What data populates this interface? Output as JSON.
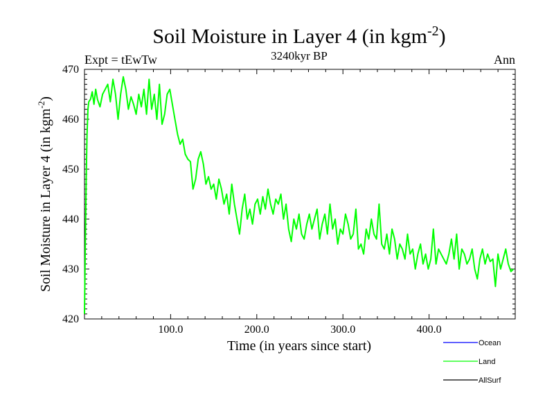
{
  "chart_data": {
    "type": "line",
    "title": "Soil Moisture in Layer 4 (in kgm",
    "title_sup": "-2",
    "title_close": ")",
    "subtitle": "3240kyr BP",
    "left_label": "Expt = tEwTw",
    "right_label": "Ann",
    "xlabel": "Time (in years since start)",
    "ylabel": "Soil Moisture in Layer 4 (in kgm",
    "ylabel_sup": "-2",
    "ylabel_close": ")",
    "xlim": [
      0,
      500
    ],
    "ylim": [
      420,
      470
    ],
    "x_ticks": [
      {
        "value": 100,
        "label": "100.0"
      },
      {
        "value": 200,
        "label": "200.0"
      },
      {
        "value": 300,
        "label": "300.0"
      },
      {
        "value": 400,
        "label": "400.0"
      }
    ],
    "y_ticks": [
      {
        "value": 420,
        "label": "420"
      },
      {
        "value": 430,
        "label": "430"
      },
      {
        "value": 440,
        "label": "440"
      },
      {
        "value": 450,
        "label": "450"
      },
      {
        "value": 460,
        "label": "460"
      },
      {
        "value": 470,
        "label": "470"
      }
    ],
    "legend": [
      {
        "name": "Ocean",
        "color": "#0000ff"
      },
      {
        "name": "Land",
        "color": "#00ff00"
      },
      {
        "name": "AllSurf",
        "color": "#000000"
      }
    ],
    "series": [
      {
        "name": "Land",
        "color": "#00ff00",
        "x": [
          0,
          1,
          2,
          3,
          4,
          5,
          7,
          9,
          11,
          13,
          15,
          18,
          21,
          24,
          27,
          30,
          33,
          36,
          39,
          42,
          45,
          48,
          51,
          54,
          57,
          60,
          63,
          66,
          69,
          72,
          75,
          78,
          81,
          84,
          87,
          90,
          93,
          96,
          99,
          102,
          105,
          108,
          111,
          114,
          117,
          120,
          123,
          126,
          129,
          132,
          135,
          138,
          141,
          144,
          147,
          150,
          153,
          156,
          159,
          162,
          165,
          168,
          171,
          174,
          177,
          180,
          183,
          186,
          189,
          192,
          195,
          198,
          201,
          204,
          207,
          210,
          213,
          216,
          219,
          222,
          225,
          228,
          231,
          234,
          237,
          240,
          243,
          246,
          249,
          252,
          255,
          258,
          261,
          264,
          267,
          270,
          273,
          276,
          279,
          282,
          285,
          288,
          291,
          294,
          297,
          300,
          303,
          306,
          309,
          312,
          315,
          318,
          321,
          324,
          327,
          330,
          333,
          336,
          339,
          342,
          345,
          348,
          351,
          354,
          357,
          360,
          363,
          366,
          369,
          372,
          375,
          378,
          381,
          384,
          387,
          390,
          393,
          396,
          399,
          402,
          405,
          408,
          411,
          414,
          417,
          420,
          423,
          426,
          429,
          432,
          435,
          438,
          441,
          444,
          447,
          450,
          453,
          456,
          459,
          462,
          465,
          468,
          471,
          474,
          477,
          480,
          483,
          486,
          489,
          492,
          495,
          498
        ],
        "values": [
          421,
          435,
          448,
          457,
          462,
          463.5,
          464,
          465.5,
          463,
          466,
          464,
          462.5,
          465,
          466,
          467,
          463.5,
          468,
          465,
          460,
          465,
          468.5,
          466,
          462,
          464.5,
          463,
          461,
          465,
          462.5,
          466,
          461,
          468,
          462,
          465,
          460,
          467,
          459,
          461,
          465,
          466,
          463,
          460,
          457,
          455,
          456,
          453,
          452,
          451.5,
          446,
          448,
          452,
          453.5,
          451,
          447,
          448.5,
          446,
          447,
          444,
          448,
          446,
          443,
          445,
          441,
          447,
          443,
          440,
          437,
          442,
          445,
          440,
          442,
          439,
          443,
          444,
          441,
          444.5,
          442,
          446,
          443,
          441,
          444,
          443,
          445,
          440,
          443,
          438,
          435.5,
          440,
          438,
          441,
          437,
          436,
          439,
          441,
          438,
          440,
          442,
          436,
          439,
          441,
          437,
          443,
          438,
          440,
          435,
          438,
          437,
          441,
          439,
          436,
          437,
          442,
          434,
          435,
          433,
          438,
          436,
          440,
          437,
          436,
          443,
          435,
          434,
          437,
          433,
          438,
          436,
          432,
          435,
          434,
          432,
          437,
          433,
          434,
          430,
          433,
          435,
          431,
          433,
          430,
          432,
          438,
          431,
          434,
          433,
          432,
          431,
          433,
          436,
          432,
          437,
          430,
          434,
          433,
          431,
          432,
          434,
          430,
          428,
          432,
          434,
          431,
          433,
          431.5,
          432,
          426.5,
          433,
          430,
          432,
          434,
          431,
          429.5,
          430
        ]
      }
    ]
  }
}
